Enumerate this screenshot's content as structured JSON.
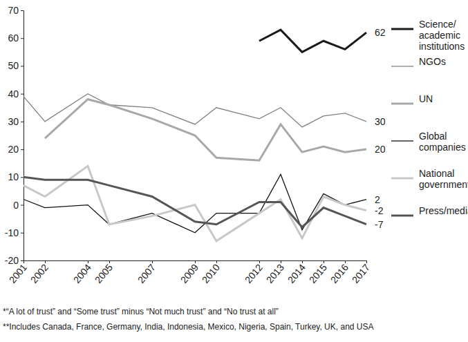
{
  "chart_data": {
    "type": "line",
    "x": [
      2001,
      2002,
      2004,
      2005,
      2007,
      2009,
      2010,
      2012,
      2013,
      2014,
      2015,
      2016,
      2017
    ],
    "xlim": [
      2001,
      2017
    ],
    "xticks": [
      2001,
      2002,
      2004,
      2005,
      2007,
      2009,
      2010,
      2012,
      2013,
      2014,
      2015,
      2016,
      2017
    ],
    "ylim": [
      -20,
      70
    ],
    "yticks": [
      -20,
      -10,
      0,
      10,
      20,
      30,
      40,
      50,
      60,
      70
    ],
    "grid": false,
    "legend": "right",
    "data_labels": true,
    "series": [
      {
        "name": "Science/ academic institutions",
        "color": "#1a1a1a",
        "line_style": "solid",
        "values": [
          null,
          null,
          null,
          null,
          null,
          null,
          null,
          59,
          63,
          55,
          59,
          56,
          62
        ],
        "value_labels": [
          null,
          null,
          null,
          null,
          null,
          null,
          null,
          null,
          null,
          null,
          null,
          null,
          "62"
        ]
      },
      {
        "name": "NGOs",
        "color": "#808080",
        "line_style": "solid",
        "values": [
          39,
          30,
          40,
          36,
          35,
          29,
          35,
          31,
          35,
          28,
          32,
          33,
          30
        ],
        "value_labels": [
          null,
          null,
          null,
          null,
          null,
          null,
          null,
          null,
          null,
          null,
          null,
          null,
          "30"
        ]
      },
      {
        "name": "UN",
        "color": "#a8a8a8",
        "line_style": "solid",
        "values": [
          null,
          24,
          38,
          36,
          31,
          25,
          17,
          16,
          29,
          19,
          21,
          19,
          20
        ],
        "value_labels": [
          null,
          null,
          null,
          null,
          null,
          null,
          null,
          null,
          null,
          null,
          null,
          null,
          "20"
        ]
      },
      {
        "name": "Global companies",
        "color": "#111111",
        "line_style": "solid",
        "values": [
          2,
          -1,
          0,
          -7,
          -3,
          -10,
          -3,
          -3,
          11,
          -9,
          4,
          0,
          2
        ],
        "value_labels": [
          null,
          null,
          null,
          null,
          null,
          null,
          null,
          null,
          null,
          null,
          null,
          null,
          "2"
        ]
      },
      {
        "name": "National government",
        "color": "#c8c8c8",
        "line_style": "solid",
        "values": [
          7,
          3,
          14,
          -7,
          -4,
          0,
          -13,
          -3,
          2,
          -12,
          3,
          0,
          -2
        ],
        "value_labels": [
          null,
          null,
          null,
          null,
          null,
          null,
          null,
          null,
          null,
          null,
          null,
          null,
          "-2"
        ]
      },
      {
        "name": "Press/media",
        "color": "#555555",
        "line_style": "solid",
        "values": [
          10,
          9,
          9,
          7,
          3,
          -6,
          -7,
          1,
          1,
          -8,
          -1,
          -4,
          -7
        ],
        "value_labels": [
          null,
          null,
          null,
          null,
          null,
          null,
          null,
          null,
          null,
          null,
          null,
          null,
          "-7"
        ]
      }
    ],
    "notes": [
      "*“A lot of trust” and “Some trust” minus “Not much trust” and “No trust at all”",
      "**Includes Canada, France, Germany, India, Indonesia, Mexico, Nigeria, Spain, Turkey, UK, and USA"
    ]
  }
}
